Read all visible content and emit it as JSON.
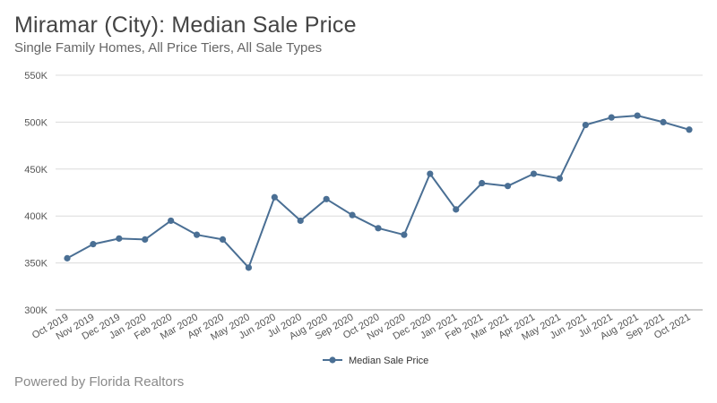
{
  "header": {
    "title": "Miramar (City): Median Sale Price",
    "subtitle": "Single Family Homes, All Price Tiers, All Sale Types"
  },
  "footer": {
    "text": "Powered by Florida Realtors"
  },
  "colors": {
    "series": "#4a6f94",
    "grid": "#dcdcdc",
    "axis": "#999999"
  },
  "chart_data": {
    "type": "line",
    "title": "Miramar (City): Median Sale Price",
    "subtitle": "Single Family Homes, All Price Tiers, All Sale Types",
    "xlabel": "",
    "ylabel": "",
    "ylim": [
      300000,
      550000
    ],
    "yticks": [
      300000,
      350000,
      400000,
      450000,
      500000,
      550000
    ],
    "ytick_labels": [
      "300K",
      "350K",
      "400K",
      "450K",
      "500K",
      "550K"
    ],
    "grid": true,
    "legend_position": "bottom-center",
    "categories": [
      "Oct 2019",
      "Nov 2019",
      "Dec 2019",
      "Jan 2020",
      "Feb 2020",
      "Mar 2020",
      "Apr 2020",
      "May 2020",
      "Jun 2020",
      "Jul 2020",
      "Aug 2020",
      "Sep 2020",
      "Oct 2020",
      "Nov 2020",
      "Dec 2020",
      "Jan 2021",
      "Feb 2021",
      "Mar 2021",
      "Apr 2021",
      "May 2021",
      "Jun 2021",
      "Jul 2021",
      "Aug 2021",
      "Sep 2021",
      "Oct 2021"
    ],
    "series": [
      {
        "name": "Median Sale Price",
        "values": [
          355000,
          370000,
          376000,
          375000,
          395000,
          380000,
          375000,
          345000,
          420000,
          395000,
          418000,
          401000,
          387000,
          380000,
          445000,
          407000,
          435000,
          432000,
          445000,
          440000,
          497000,
          505000,
          507000,
          500000,
          492000
        ]
      }
    ]
  }
}
